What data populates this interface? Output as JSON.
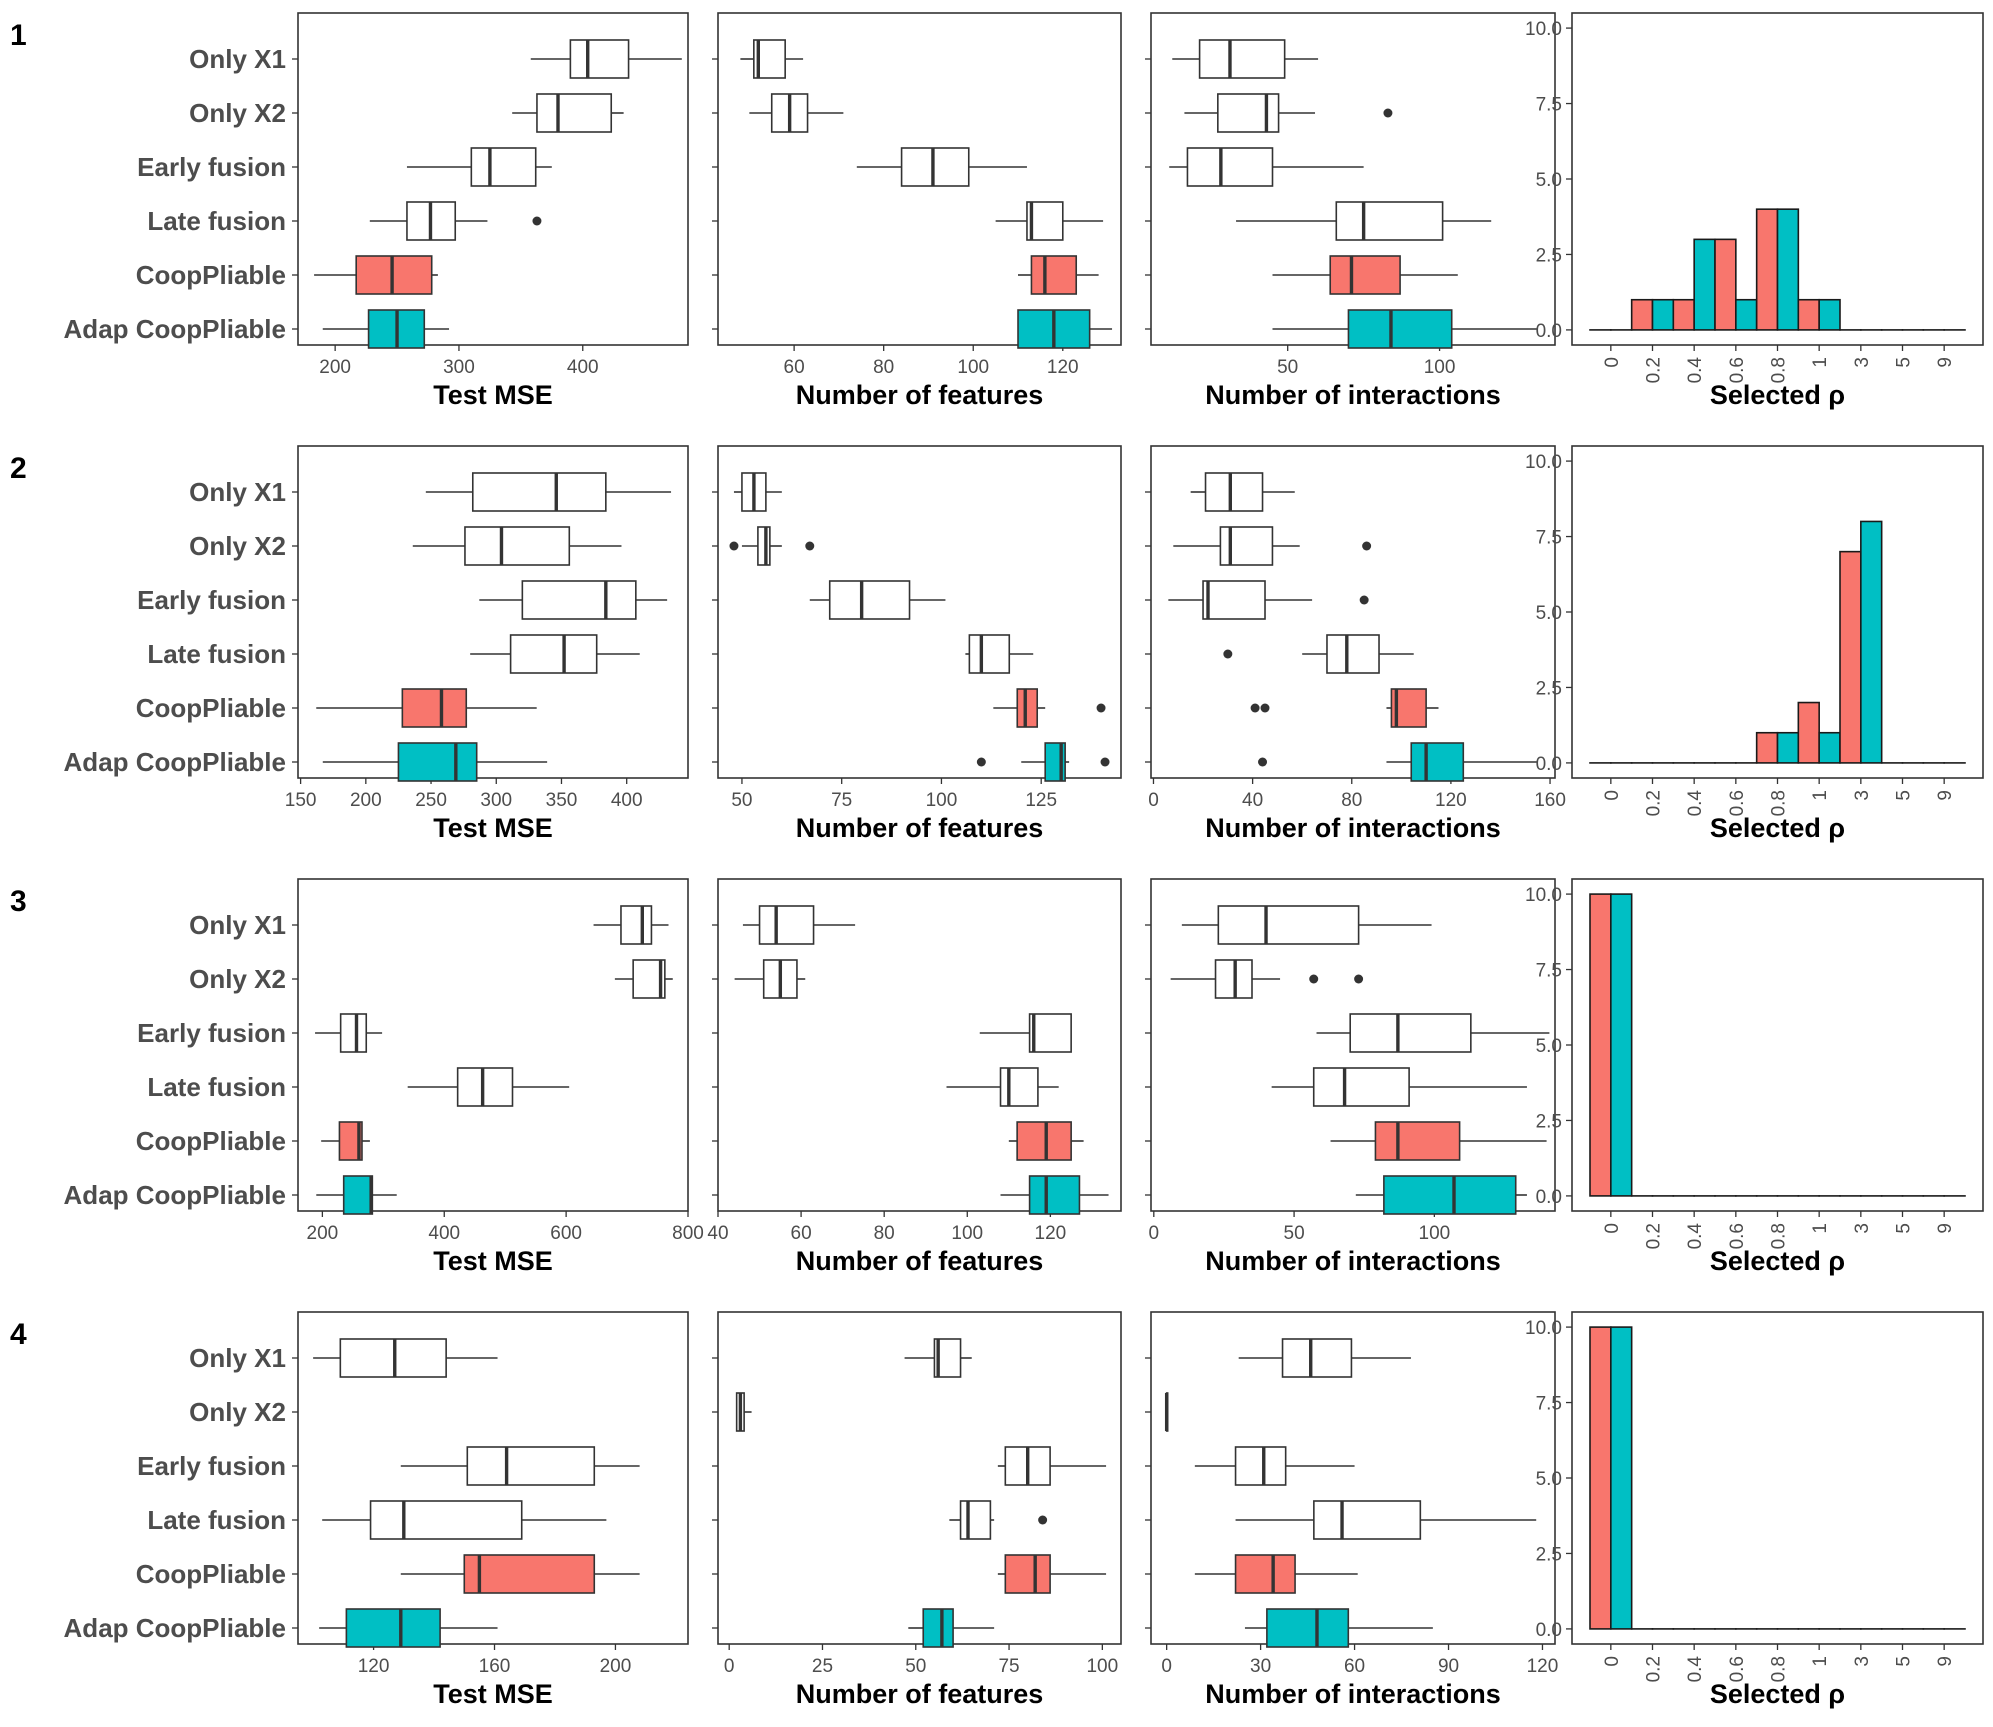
{
  "categories": [
    "Only X1",
    "Only X2",
    "Early fusion",
    "Late fusion",
    "CoopPliable",
    "Adap CoopPliable"
  ],
  "rho_labels": [
    "0",
    "0.2",
    "0.4",
    "0.6",
    "0.8",
    "1",
    "3",
    "5",
    "9"
  ],
  "colors": {
    "coop": "#F8766D",
    "adap": "#00BFC4",
    "plain": "#FFFFFF"
  },
  "chart_data": [
    {
      "type": "boxplot",
      "row": "1",
      "panels": [
        {
          "xlabel": "Test MSE",
          "xlim": [
            170,
            485
          ],
          "ticks": [
            200,
            300,
            400
          ],
          "boxes": [
            {
              "min": 358,
              "q1": 390,
              "median": 404,
              "q3": 437,
              "max": 480,
              "outliers": []
            },
            {
              "min": 343,
              "q1": 363,
              "median": 380,
              "q3": 423,
              "max": 433,
              "outliers": []
            },
            {
              "min": 258,
              "q1": 310,
              "median": 325,
              "q3": 362,
              "max": 375,
              "outliers": []
            },
            {
              "min": 228,
              "q1": 258,
              "median": 277,
              "q3": 297,
              "max": 323,
              "outliers": [
                363
              ]
            },
            {
              "min": 183,
              "q1": 217,
              "median": 246,
              "q3": 278,
              "max": 283,
              "outliers": []
            },
            {
              "min": 190,
              "q1": 227,
              "median": 250,
              "q3": 272,
              "max": 292,
              "outliers": []
            }
          ]
        },
        {
          "xlabel": "Number of features",
          "xlim": [
            43,
            133
          ],
          "ticks": [
            60,
            80,
            100,
            120
          ],
          "boxes": [
            {
              "min": 48,
              "q1": 51,
              "median": 52,
              "q3": 58,
              "max": 62,
              "outliers": []
            },
            {
              "min": 50,
              "q1": 55,
              "median": 59,
              "q3": 63,
              "max": 71,
              "outliers": []
            },
            {
              "min": 74,
              "q1": 84,
              "median": 91,
              "q3": 99,
              "max": 112,
              "outliers": []
            },
            {
              "min": 105,
              "q1": 112,
              "median": 113,
              "q3": 120,
              "max": 129,
              "outliers": []
            },
            {
              "min": 110,
              "q1": 113,
              "median": 116,
              "q3": 123,
              "max": 128,
              "outliers": []
            },
            {
              "min": 110,
              "q1": 110,
              "median": 118,
              "q3": 126,
              "max": 131,
              "outliers": []
            }
          ]
        },
        {
          "xlabel": "Number of interactions",
          "xlim": [
            5,
            138
          ],
          "ticks": [
            50,
            100
          ],
          "boxes": [
            {
              "min": 12,
              "q1": 21,
              "median": 31,
              "q3": 49,
              "max": 60,
              "outliers": []
            },
            {
              "min": 16,
              "q1": 27,
              "median": 43,
              "q3": 47,
              "max": 59,
              "outliers": [
                83
              ]
            },
            {
              "min": 11,
              "q1": 17,
              "median": 28,
              "q3": 45,
              "max": 75,
              "outliers": []
            },
            {
              "min": 33,
              "q1": 66,
              "median": 75,
              "q3": 101,
              "max": 117,
              "outliers": []
            },
            {
              "min": 45,
              "q1": 64,
              "median": 71,
              "q3": 87,
              "max": 106,
              "outliers": []
            },
            {
              "min": 45,
              "q1": 70,
              "median": 84,
              "q3": 104,
              "max": 132,
              "outliers": []
            }
          ]
        }
      ],
      "rho": {
        "xlabel": "Selected ρ",
        "ylim": [
          -0.5,
          10.5
        ],
        "ticks": [
          "0.0",
          "2.5",
          "5.0",
          "7.5",
          "10.0"
        ],
        "coop": [
          0,
          1,
          1,
          3,
          4,
          1,
          0,
          0,
          0
        ],
        "adap": [
          0,
          1,
          3,
          1,
          4,
          1,
          0,
          0,
          0
        ]
      }
    },
    {
      "type": "boxplot",
      "row": "2",
      "panels": [
        {
          "xlabel": "Test MSE",
          "xlim": [
            148,
            447
          ],
          "ticks": [
            150,
            200,
            250,
            300,
            350,
            400
          ],
          "boxes": [
            {
              "min": 246,
              "q1": 282,
              "median": 346,
              "q3": 384,
              "max": 434,
              "outliers": []
            },
            {
              "min": 236,
              "q1": 276,
              "median": 304,
              "q3": 356,
              "max": 396,
              "outliers": []
            },
            {
              "min": 287,
              "q1": 320,
              "median": 384,
              "q3": 407,
              "max": 431,
              "outliers": []
            },
            {
              "min": 280,
              "q1": 311,
              "median": 352,
              "q3": 377,
              "max": 410,
              "outliers": []
            },
            {
              "min": 162,
              "q1": 228,
              "median": 258,
              "q3": 277,
              "max": 331,
              "outliers": []
            },
            {
              "min": 167,
              "q1": 225,
              "median": 269,
              "q3": 285,
              "max": 339,
              "outliers": []
            }
          ]
        },
        {
          "xlabel": "Number of features",
          "xlim": [
            44,
            145
          ],
          "ticks": [
            50,
            75,
            100,
            125
          ],
          "boxes": [
            {
              "min": 48,
              "q1": 50,
              "median": 53,
              "q3": 56,
              "max": 60,
              "outliers": []
            },
            {
              "min": 50,
              "q1": 54,
              "median": 56,
              "q3": 57,
              "max": 60,
              "outliers": [
                48,
                67
              ]
            },
            {
              "min": 67,
              "q1": 72,
              "median": 80,
              "q3": 92,
              "max": 101,
              "outliers": []
            },
            {
              "min": 106,
              "q1": 107,
              "median": 110,
              "q3": 117,
              "max": 123,
              "outliers": []
            },
            {
              "min": 113,
              "q1": 119,
              "median": 121,
              "q3": 124,
              "max": 126,
              "outliers": [
                140
              ]
            },
            {
              "min": 120,
              "q1": 126,
              "median": 130,
              "q3": 131,
              "max": 132,
              "outliers": [
                110,
                141
              ]
            }
          ]
        },
        {
          "xlabel": "Number of interactions",
          "xlim": [
            -1,
            162
          ],
          "ticks": [
            0,
            40,
            80,
            120,
            160
          ],
          "boxes": [
            {
              "min": 15,
              "q1": 21,
              "median": 31,
              "q3": 44,
              "max": 57,
              "outliers": []
            },
            {
              "min": 8,
              "q1": 27,
              "median": 31,
              "q3": 48,
              "max": 59,
              "outliers": [
                86
              ]
            },
            {
              "min": 6,
              "q1": 20,
              "median": 22,
              "q3": 45,
              "max": 64,
              "outliers": [
                85
              ]
            },
            {
              "min": 60,
              "q1": 70,
              "median": 78,
              "q3": 91,
              "max": 105,
              "outliers": [
                30
              ]
            },
            {
              "min": 94,
              "q1": 96,
              "median": 98,
              "q3": 110,
              "max": 115,
              "outliers": [
                41,
                45
              ]
            },
            {
              "min": 94,
              "q1": 104,
              "median": 110,
              "q3": 125,
              "max": 155,
              "outliers": [
                44
              ]
            }
          ]
        }
      ],
      "rho": {
        "xlabel": "Selected ρ",
        "ylim": [
          -0.5,
          10.5
        ],
        "ticks": [
          "0.0",
          "2.5",
          "5.0",
          "7.5",
          "10.0"
        ],
        "coop": [
          0,
          0,
          0,
          0,
          1,
          2,
          7,
          0,
          0
        ],
        "adap": [
          0,
          0,
          0,
          0,
          1,
          1,
          8,
          0,
          0
        ]
      }
    },
    {
      "type": "boxplot",
      "row": "3",
      "panels": [
        {
          "xlabel": "Test MSE",
          "xlim": [
            160,
            800
          ],
          "ticks": [
            200,
            400,
            600,
            800
          ],
          "boxes": [
            {
              "min": 645,
              "q1": 690,
              "median": 725,
              "q3": 740,
              "max": 768,
              "outliers": []
            },
            {
              "min": 680,
              "q1": 710,
              "median": 755,
              "q3": 762,
              "max": 775,
              "outliers": []
            },
            {
              "min": 188,
              "q1": 230,
              "median": 256,
              "q3": 272,
              "max": 298,
              "outliers": []
            },
            {
              "min": 340,
              "q1": 422,
              "median": 463,
              "q3": 512,
              "max": 605,
              "outliers": []
            },
            {
              "min": 198,
              "q1": 228,
              "median": 260,
              "q3": 265,
              "max": 278,
              "outliers": []
            },
            {
              "min": 190,
              "q1": 235,
              "median": 280,
              "q3": 282,
              "max": 322,
              "outliers": []
            }
          ]
        },
        {
          "xlabel": "Number of features",
          "xlim": [
            40,
            137
          ],
          "ticks": [
            40,
            60,
            80,
            100,
            120
          ],
          "boxes": [
            {
              "min": 46,
              "q1": 50,
              "median": 54,
              "q3": 63,
              "max": 73,
              "outliers": []
            },
            {
              "min": 44,
              "q1": 51,
              "median": 55,
              "q3": 59,
              "max": 61,
              "outliers": []
            },
            {
              "min": 103,
              "q1": 115,
              "median": 116,
              "q3": 125,
              "max": 125,
              "outliers": []
            },
            {
              "min": 95,
              "q1": 108,
              "median": 110,
              "q3": 117,
              "max": 122,
              "outliers": []
            },
            {
              "min": 110,
              "q1": 112,
              "median": 119,
              "q3": 125,
              "max": 128,
              "outliers": []
            },
            {
              "min": 108,
              "q1": 115,
              "median": 119,
              "q3": 127,
              "max": 134,
              "outliers": []
            }
          ]
        },
        {
          "xlabel": "Number of interactions",
          "xlim": [
            -1,
            143
          ],
          "ticks": [
            0,
            50,
            100
          ],
          "boxes": [
            {
              "min": 10,
              "q1": 23,
              "median": 40,
              "q3": 73,
              "max": 99,
              "outliers": []
            },
            {
              "min": 6,
              "q1": 22,
              "median": 29,
              "q3": 35,
              "max": 45,
              "outliers": [
                57,
                73
              ]
            },
            {
              "min": 58,
              "q1": 70,
              "median": 87,
              "q3": 113,
              "max": 141,
              "outliers": []
            },
            {
              "min": 42,
              "q1": 57,
              "median": 68,
              "q3": 91,
              "max": 133,
              "outliers": []
            },
            {
              "min": 63,
              "q1": 79,
              "median": 87,
              "q3": 109,
              "max": 140,
              "outliers": []
            },
            {
              "min": 72,
              "q1": 82,
              "median": 107,
              "q3": 129,
              "max": 133,
              "outliers": []
            }
          ]
        }
      ],
      "rho": {
        "xlabel": "Selected ρ",
        "ylim": [
          -0.5,
          10.5
        ],
        "ticks": [
          "0.0",
          "2.5",
          "5.0",
          "7.5",
          "10.0"
        ],
        "coop": [
          10,
          0,
          0,
          0,
          0,
          0,
          0,
          0,
          0
        ],
        "adap": [
          10,
          0,
          0,
          0,
          0,
          0,
          0,
          0,
          0
        ]
      }
    },
    {
      "type": "boxplot",
      "row": "4",
      "panels": [
        {
          "xlabel": "Test MSE",
          "xlim": [
            95,
            224
          ],
          "ticks": [
            120,
            160,
            200
          ],
          "boxes": [
            {
              "min": 100,
              "q1": 109,
              "median": 127,
              "q3": 144,
              "max": 161,
              "outliers": []
            },
            {
              "min": null,
              "q1": null,
              "median": null,
              "q3": null,
              "max": null,
              "outliers": []
            },
            {
              "min": 129,
              "q1": 151,
              "median": 164,
              "q3": 193,
              "max": 208,
              "outliers": []
            },
            {
              "min": 103,
              "q1": 119,
              "median": 130,
              "q3": 169,
              "max": 197,
              "outliers": []
            },
            {
              "min": 129,
              "q1": 150,
              "median": 155,
              "q3": 193,
              "max": 208,
              "outliers": []
            },
            {
              "min": 102,
              "q1": 111,
              "median": 129,
              "q3": 142,
              "max": 161,
              "outliers": []
            }
          ]
        },
        {
          "xlabel": "Number of features",
          "xlim": [
            -3,
            105
          ],
          "ticks": [
            0,
            25,
            50,
            75,
            100
          ],
          "boxes": [
            {
              "min": 47,
              "q1": 55,
              "median": 56,
              "q3": 62,
              "max": 65,
              "outliers": []
            },
            {
              "min": 2,
              "q1": 2,
              "median": 3,
              "q3": 4,
              "max": 6,
              "outliers": []
            },
            {
              "min": 72,
              "q1": 74,
              "median": 80,
              "q3": 86,
              "max": 101,
              "outliers": []
            },
            {
              "min": 59,
              "q1": 62,
              "median": 64,
              "q3": 70,
              "max": 71,
              "outliers": [
                84
              ]
            },
            {
              "min": 72,
              "q1": 74,
              "median": 82,
              "q3": 86,
              "max": 101,
              "outliers": []
            },
            {
              "min": 48,
              "q1": 52,
              "median": 57,
              "q3": 60,
              "max": 71,
              "outliers": []
            }
          ]
        },
        {
          "xlabel": "Number of interactions",
          "xlim": [
            -5,
            124
          ],
          "ticks": [
            0,
            30,
            60,
            90,
            120
          ],
          "boxes": [
            {
              "min": 23,
              "q1": 37,
              "median": 46,
              "q3": 59,
              "max": 78,
              "outliers": []
            },
            {
              "min": 0,
              "q1": 0,
              "median": 0,
              "q3": 0,
              "max": 0,
              "outliers": []
            },
            {
              "min": 9,
              "q1": 22,
              "median": 31,
              "q3": 38,
              "max": 60,
              "outliers": []
            },
            {
              "min": 22,
              "q1": 47,
              "median": 56,
              "q3": 81,
              "max": 118,
              "outliers": []
            },
            {
              "min": 9,
              "q1": 22,
              "median": 34,
              "q3": 41,
              "max": 61,
              "outliers": []
            },
            {
              "min": 25,
              "q1": 32,
              "median": 48,
              "q3": 58,
              "max": 85,
              "outliers": []
            }
          ]
        }
      ],
      "rho": {
        "xlabel": "Selected ρ",
        "ylim": [
          -0.5,
          10.5
        ],
        "ticks": [
          "0.0",
          "2.5",
          "5.0",
          "7.5",
          "10.0"
        ],
        "coop": [
          10,
          0,
          0,
          0,
          0,
          0,
          0,
          0,
          0
        ],
        "adap": [
          10,
          0,
          0,
          0,
          0,
          0,
          0,
          0,
          0
        ]
      }
    }
  ]
}
